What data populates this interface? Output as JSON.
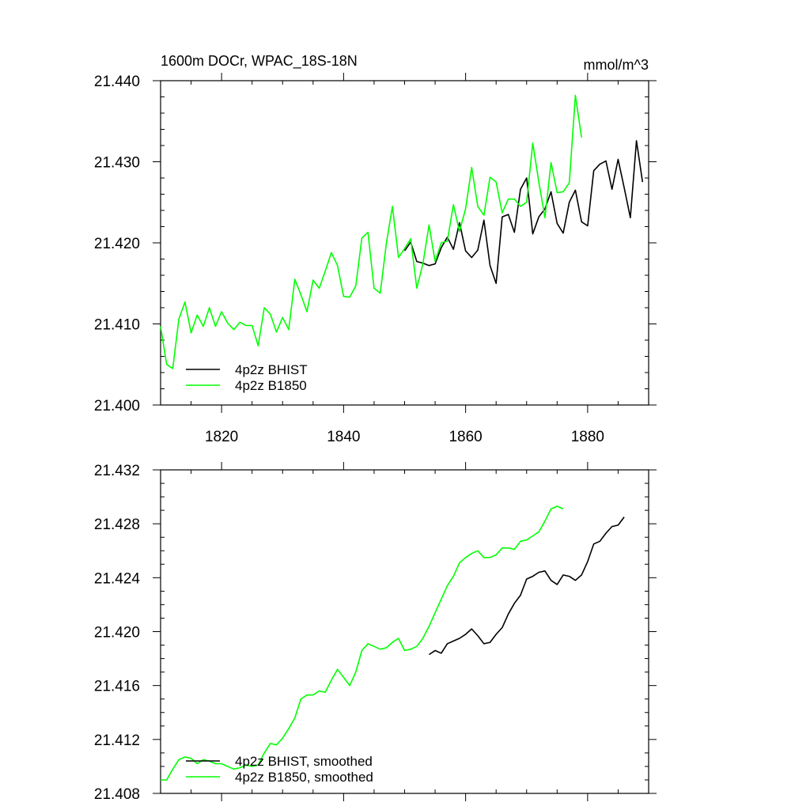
{
  "chart_data": [
    {
      "type": "line",
      "title_left": "1600m DOCr, WPAC_18S-18N",
      "title_right": "mmol/m^3",
      "xlabel": "",
      "ylabel": "",
      "xlim": [
        1810,
        1890
      ],
      "ylim": [
        21.4,
        21.44
      ],
      "xticks": [
        1820,
        1840,
        1860,
        1880
      ],
      "xtick_labels": [
        "1820",
        "1840",
        "1860",
        "1880"
      ],
      "yticks": [
        21.4,
        21.41,
        21.42,
        21.43,
        21.44
      ],
      "ytick_labels": [
        "21.400",
        "21.410",
        "21.420",
        "21.430",
        "21.440"
      ],
      "legend_position": "bottom-left",
      "series": [
        {
          "name": "4p2z BHIST",
          "color": "#000000",
          "x": [
            1850,
            1851,
            1852,
            1853,
            1854,
            1855,
            1856,
            1857,
            1858,
            1859,
            1860,
            1861,
            1862,
            1863,
            1864,
            1865,
            1866,
            1867,
            1868,
            1869,
            1870,
            1871,
            1872,
            1873,
            1874,
            1875,
            1876,
            1877,
            1878,
            1879,
            1880,
            1881,
            1882,
            1883,
            1884,
            1885,
            1886,
            1887,
            1888,
            1889
          ],
          "values": [
            21.419,
            21.4201,
            21.4177,
            21.4175,
            21.4172,
            21.4174,
            21.4194,
            21.4207,
            21.4192,
            21.4225,
            21.419,
            21.4182,
            21.4191,
            21.4228,
            21.4172,
            21.415,
            21.4232,
            21.4235,
            21.4213,
            21.4266,
            21.428,
            21.4211,
            21.4232,
            21.4242,
            21.4263,
            21.4224,
            21.4212,
            21.425,
            21.4265,
            21.4226,
            21.4221,
            21.4289,
            21.4297,
            21.4301,
            21.4266,
            21.4303,
            21.4268,
            21.4231,
            21.4326,
            21.4275
          ]
        },
        {
          "name": "4p2z B1850",
          "color": "#00ff00",
          "x": [
            1810,
            1811,
            1812,
            1813,
            1814,
            1815,
            1816,
            1817,
            1818,
            1819,
            1820,
            1821,
            1822,
            1823,
            1824,
            1825,
            1826,
            1827,
            1828,
            1829,
            1830,
            1831,
            1832,
            1833,
            1834,
            1835,
            1836,
            1837,
            1838,
            1839,
            1840,
            1841,
            1842,
            1843,
            1844,
            1845,
            1846,
            1847,
            1848,
            1849,
            1850,
            1851,
            1852,
            1853,
            1854,
            1855,
            1856,
            1857,
            1858,
            1859,
            1860,
            1861,
            1862,
            1863,
            1864,
            1865,
            1866,
            1867,
            1868,
            1869,
            1870,
            1871,
            1872,
            1873,
            1874,
            1875,
            1876,
            1877,
            1878,
            1879
          ],
          "values": [
            21.4097,
            21.405,
            21.4045,
            21.4106,
            21.4127,
            21.4089,
            21.4111,
            21.4097,
            21.412,
            21.4097,
            21.4115,
            21.4101,
            21.4093,
            21.4102,
            21.4098,
            21.4098,
            21.4073,
            21.412,
            21.4112,
            21.409,
            21.4108,
            21.4093,
            21.4155,
            21.4136,
            21.4115,
            21.4154,
            21.4144,
            21.4165,
            21.4188,
            21.4172,
            21.4134,
            21.4133,
            21.4147,
            21.4206,
            21.4213,
            21.4144,
            21.4138,
            21.4199,
            21.4245,
            21.4182,
            21.4193,
            21.4205,
            21.4144,
            21.4174,
            21.4222,
            21.4177,
            21.42,
            21.4202,
            21.4247,
            21.4214,
            21.4242,
            21.4293,
            21.4245,
            21.4234,
            21.4281,
            21.4275,
            21.4237,
            21.4254,
            21.4254,
            21.4245,
            21.425,
            21.4323,
            21.4275,
            21.4231,
            21.4299,
            21.4262,
            21.4263,
            21.4274,
            21.4382,
            21.433
          ]
        }
      ]
    },
    {
      "type": "line",
      "xlabel": "",
      "ylabel": "",
      "xlim": [
        1810,
        1890
      ],
      "ylim": [
        21.408,
        21.432
      ],
      "xticks": [
        1820,
        1840,
        1860,
        1880
      ],
      "yticks": [
        21.408,
        21.412,
        21.416,
        21.42,
        21.424,
        21.428,
        21.432
      ],
      "ytick_labels": [
        "21.408",
        "21.412",
        "21.416",
        "21.420",
        "21.424",
        "21.428",
        "21.432"
      ],
      "legend_position": "bottom-left",
      "series": [
        {
          "name": "4p2z BHIST, smoothed",
          "color": "#000000",
          "x": [
            1854,
            1855,
            1856,
            1857,
            1858,
            1859,
            1860,
            1861,
            1862,
            1863,
            1864,
            1865,
            1866,
            1867,
            1868,
            1869,
            1870,
            1871,
            1872,
            1873,
            1874,
            1875,
            1876,
            1877,
            1878,
            1879,
            1880,
            1881,
            1882,
            1883,
            1884,
            1885,
            1886
          ],
          "values": [
            21.4183,
            21.4186,
            21.4184,
            21.4191,
            21.4193,
            21.4195,
            21.4198,
            21.4202,
            21.4197,
            21.4191,
            21.4192,
            21.4198,
            21.4203,
            21.4213,
            21.4221,
            21.4227,
            21.4239,
            21.4241,
            21.4244,
            21.4245,
            21.4238,
            21.4235,
            21.4242,
            21.4241,
            21.4238,
            21.4242,
            21.4252,
            21.4265,
            21.4267,
            21.4273,
            21.4278,
            21.4279,
            21.4285
          ]
        },
        {
          "name": "4p2z B1850, smoothed",
          "color": "#00ff00",
          "x": [
            1810,
            1811,
            1812,
            1813,
            1814,
            1815,
            1816,
            1817,
            1818,
            1819,
            1820,
            1821,
            1822,
            1823,
            1824,
            1825,
            1826,
            1827,
            1828,
            1829,
            1830,
            1831,
            1832,
            1833,
            1834,
            1835,
            1836,
            1837,
            1838,
            1839,
            1840,
            1841,
            1842,
            1843,
            1844,
            1845,
            1846,
            1847,
            1848,
            1849,
            1850,
            1851,
            1852,
            1853,
            1854,
            1855,
            1856,
            1857,
            1858,
            1859,
            1860,
            1861,
            1862,
            1863,
            1864,
            1865,
            1866,
            1867,
            1868,
            1869,
            1870,
            1871,
            1872,
            1873,
            1874,
            1875,
            1876
          ],
          "values": [
            21.409,
            21.409,
            21.4098,
            21.4105,
            21.4107,
            21.4106,
            21.4102,
            21.4105,
            21.4104,
            21.4102,
            21.4102,
            21.41,
            21.4098,
            21.4099,
            21.4101,
            21.41,
            21.4101,
            21.411,
            21.4117,
            21.4116,
            21.4121,
            21.4128,
            21.4136,
            21.415,
            21.4153,
            21.4153,
            21.4156,
            21.4155,
            21.4164,
            21.4172,
            21.4166,
            21.416,
            21.417,
            21.4186,
            21.4191,
            21.4189,
            21.4187,
            21.4188,
            21.4192,
            21.4195,
            21.4186,
            21.4187,
            21.4189,
            21.4195,
            21.4204,
            21.4214,
            21.4224,
            21.4234,
            21.4241,
            21.4251,
            21.4255,
            21.4258,
            21.426,
            21.4255,
            21.4255,
            21.4257,
            21.4262,
            21.4262,
            21.4261,
            21.4267,
            21.4268,
            21.4271,
            21.4274,
            21.4282,
            21.4291,
            21.4293,
            21.4291
          ]
        }
      ]
    }
  ]
}
